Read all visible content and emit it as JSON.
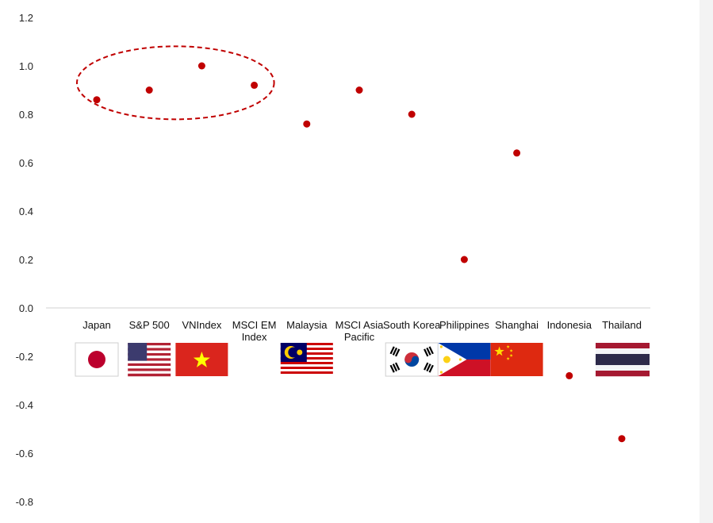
{
  "chart_data": {
    "type": "scatter",
    "title": "",
    "xlabel": "",
    "ylabel": "",
    "ylim": [
      -0.8,
      1.2
    ],
    "yticks": [
      "1.2",
      "1.0",
      "0.8",
      "0.6",
      "0.4",
      "0.2",
      "0.0",
      "-0.2",
      "-0.4",
      "-0.6",
      "-0.8"
    ],
    "ytick_values": [
      1.2,
      1.0,
      0.8,
      0.6,
      0.4,
      0.2,
      0.0,
      -0.2,
      -0.4,
      -0.6,
      -0.8
    ],
    "grid": false,
    "legend": "none",
    "marker_color": "#c00000",
    "categories": [
      {
        "lines": [
          "Japan"
        ],
        "flag": "japan-flag"
      },
      {
        "lines": [
          "S&P 500"
        ],
        "flag": "usa-flag"
      },
      {
        "lines": [
          "VNIndex"
        ],
        "flag": "vietnam-flag"
      },
      {
        "lines": [
          "MSCI EM",
          "Index"
        ],
        "flag": ""
      },
      {
        "lines": [
          "Malaysia"
        ],
        "flag": "malaysia-flag"
      },
      {
        "lines": [
          "MSCI Asia",
          "Pacific"
        ],
        "flag": ""
      },
      {
        "lines": [
          "South Korea"
        ],
        "flag": "south-korea-flag"
      },
      {
        "lines": [
          "Philippines"
        ],
        "flag": "philippines-flag"
      },
      {
        "lines": [
          "Shanghai"
        ],
        "flag": "china-flag"
      },
      {
        "lines": [
          "Indonesia"
        ],
        "flag": ""
      },
      {
        "lines": [
          "Thailand"
        ],
        "flag": "thailand-flag"
      }
    ],
    "values": [
      0.86,
      0.9,
      1.0,
      0.92,
      0.76,
      0.9,
      0.8,
      0.2,
      0.64,
      -0.28,
      -0.54
    ],
    "annotation": {
      "shape": "dashed-ellipse",
      "color": "#c00000",
      "groups": [
        "Japan",
        "S&P 500",
        "VNIndex",
        "MSCI EM Index"
      ]
    }
  }
}
